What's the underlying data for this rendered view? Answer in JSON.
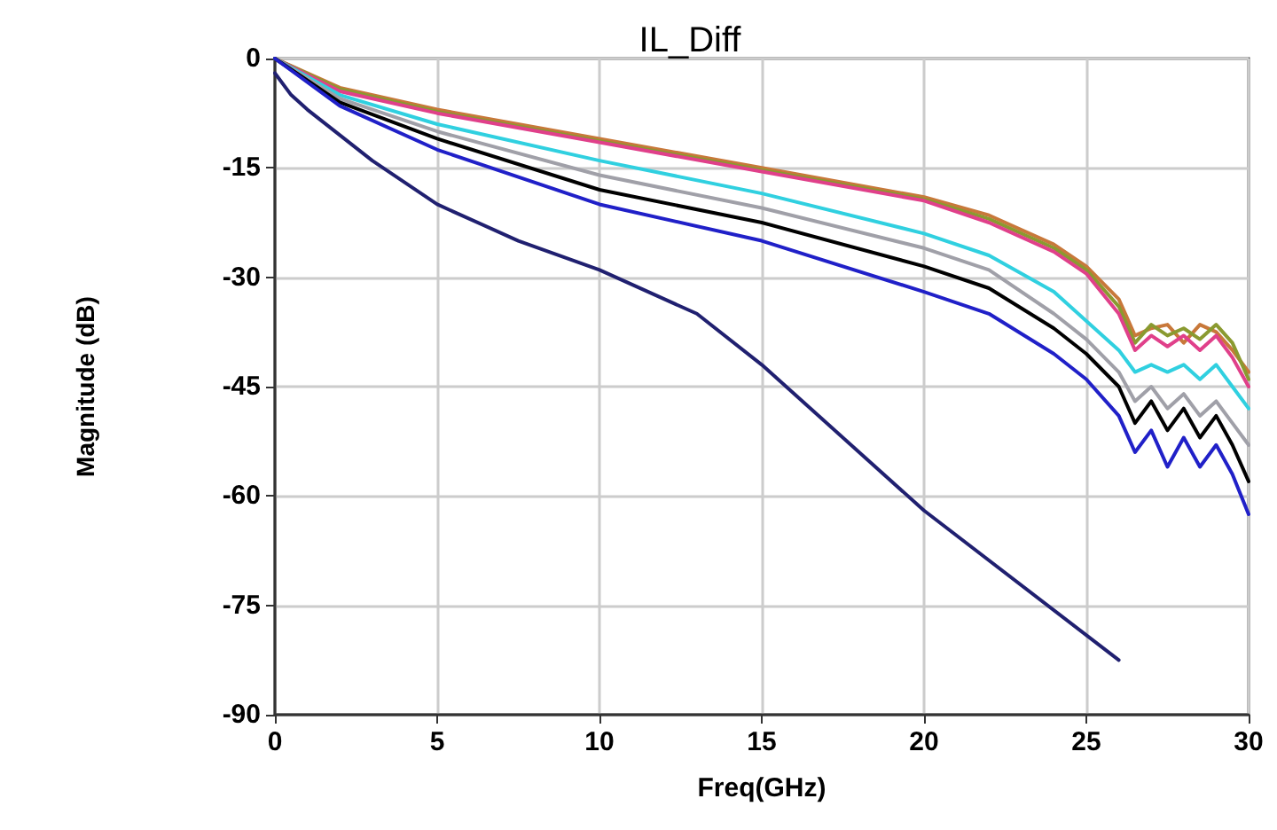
{
  "chart_data": {
    "type": "line",
    "title": "IL_Diff",
    "xlabel": "Freq(GHz)",
    "ylabel": "Magnitude (dB)",
    "xlim": [
      0,
      30
    ],
    "ylim": [
      -90,
      0
    ],
    "xticks": [
      0,
      5,
      10,
      15,
      20,
      25,
      30
    ],
    "yticks": [
      0,
      -15,
      -30,
      -45,
      -60,
      -75,
      -90
    ],
    "grid": true,
    "marker": "none",
    "line_style": "solid",
    "series": [
      {
        "color": "#c8783a",
        "x": [
          0,
          2,
          5,
          10,
          15,
          20,
          22,
          24,
          25,
          26,
          26.5,
          27,
          27.5,
          28,
          28.5,
          29,
          29.5,
          30
        ],
        "values": [
          0,
          -4,
          -7,
          -11,
          -15,
          -19,
          -21.5,
          -25.5,
          -28.5,
          -33,
          -38,
          -37,
          -36.5,
          -39,
          -36.5,
          -37.5,
          -40,
          -43
        ]
      },
      {
        "color": "#8a9a30",
        "x": [
          0,
          2,
          5,
          10,
          15,
          20,
          22,
          24,
          25,
          26,
          26.5,
          27,
          27.5,
          28,
          28.5,
          29,
          29.5,
          30
        ],
        "values": [
          0,
          -4.2,
          -7.3,
          -11.3,
          -15.3,
          -19.3,
          -22,
          -26,
          -29,
          -34,
          -39,
          -36.5,
          -38,
          -37,
          -38.5,
          -36.5,
          -39,
          -44
        ]
      },
      {
        "color": "#e0408a",
        "x": [
          0,
          2,
          5,
          10,
          15,
          20,
          22,
          24,
          25,
          26,
          26.5,
          27,
          27.5,
          28,
          28.5,
          29,
          29.5,
          30
        ],
        "values": [
          0,
          -4.5,
          -7.5,
          -11.5,
          -15.5,
          -19.5,
          -22.5,
          -26.5,
          -29.5,
          -35,
          -40,
          -38,
          -39.5,
          -38,
          -40,
          -38,
          -41,
          -45
        ]
      },
      {
        "color": "#30d0e0",
        "x": [
          0,
          2,
          5,
          10,
          15,
          20,
          22,
          24,
          25,
          26,
          26.5,
          27,
          27.5,
          28,
          28.5,
          29,
          29.5,
          30
        ],
        "values": [
          0,
          -5,
          -9,
          -14,
          -18.5,
          -24,
          -27,
          -32,
          -36,
          -40,
          -43,
          -42,
          -43,
          -42,
          -44,
          -42,
          -45,
          -48
        ]
      },
      {
        "color": "#a0a0a8",
        "x": [
          0,
          2,
          5,
          10,
          15,
          20,
          22,
          24,
          25,
          26,
          26.5,
          27,
          27.5,
          28,
          28.5,
          29,
          29.5,
          30
        ],
        "values": [
          0,
          -5.5,
          -10,
          -16,
          -20.5,
          -26,
          -29,
          -35,
          -38.5,
          -43,
          -47,
          -45,
          -48,
          -46,
          -49,
          -47,
          -50,
          -53
        ]
      },
      {
        "color": "#000000",
        "x": [
          0,
          2,
          5,
          10,
          15,
          20,
          22,
          24,
          25,
          26,
          26.5,
          27,
          27.5,
          28,
          28.5,
          29,
          29.5,
          30
        ],
        "values": [
          0,
          -6,
          -11,
          -18,
          -22.5,
          -28.5,
          -31.5,
          -37,
          -40.5,
          -45,
          -50,
          -47,
          -51,
          -48,
          -52,
          -49,
          -53,
          -58
        ]
      },
      {
        "color": "#2020c8",
        "x": [
          0,
          2,
          5,
          10,
          15,
          20,
          22,
          24,
          25,
          26,
          26.5,
          27,
          27.5,
          28,
          28.5,
          29,
          29.5,
          30
        ],
        "values": [
          0,
          -6.5,
          -12.5,
          -20,
          -25,
          -32,
          -35,
          -40.5,
          -44,
          -49,
          -54,
          -51,
          -56,
          -52,
          -56,
          -53,
          -57,
          -62.5
        ]
      },
      {
        "color": "#202070",
        "x": [
          0,
          0.5,
          1,
          2,
          3,
          5,
          7.5,
          10,
          13,
          15,
          20,
          26
        ],
        "values": [
          -2,
          -5,
          -7,
          -10.5,
          -14,
          -20,
          -25,
          -29,
          -35,
          -42,
          -62,
          -82.5
        ]
      }
    ]
  }
}
